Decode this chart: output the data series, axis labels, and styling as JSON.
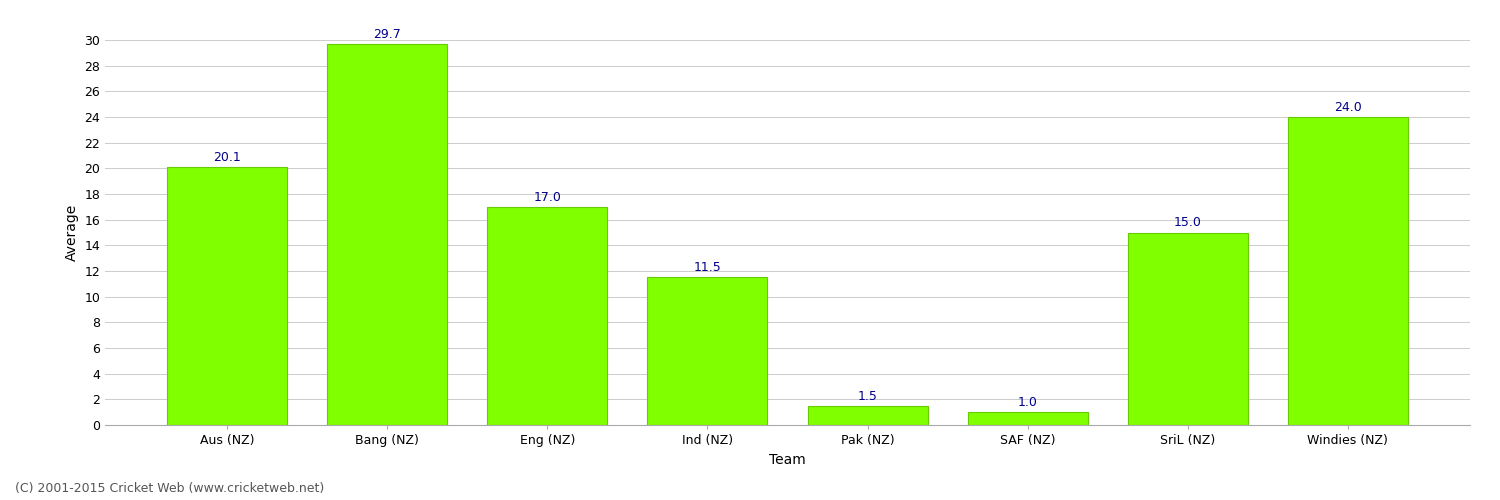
{
  "categories": [
    "Aus (NZ)",
    "Bang (NZ)",
    "Eng (NZ)",
    "Ind (NZ)",
    "Pak (NZ)",
    "SAF (NZ)",
    "SriL (NZ)",
    "Windies (NZ)"
  ],
  "values": [
    20.1,
    29.7,
    17.0,
    11.5,
    1.5,
    1.0,
    15.0,
    24.0
  ],
  "bar_color": "#7fff00",
  "bar_edge_color": "#66cc00",
  "label_color": "#00008b",
  "label_fontsize": 9,
  "xlabel": "Team",
  "ylabel": "Average",
  "ylim": [
    0,
    30
  ],
  "yticks": [
    0,
    2,
    4,
    6,
    8,
    10,
    12,
    14,
    16,
    18,
    20,
    22,
    24,
    26,
    28,
    30
  ],
  "grid_color": "#cccccc",
  "background_color": "#ffffff",
  "footer_text": "(C) 2001-2015 Cricket Web (www.cricketweb.net)",
  "footer_color": "#555555",
  "footer_fontsize": 9,
  "axis_label_fontsize": 10,
  "tick_fontsize": 9,
  "bar_width": 0.75
}
